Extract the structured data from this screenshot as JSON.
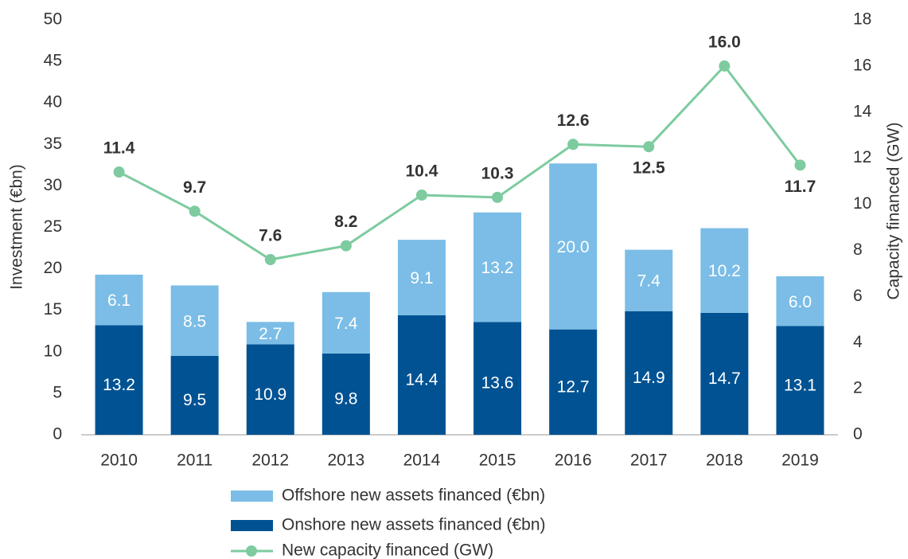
{
  "chart_data": {
    "type": "bar",
    "categories": [
      "2010",
      "2011",
      "2012",
      "2013",
      "2014",
      "2015",
      "2016",
      "2017",
      "2018",
      "2019"
    ],
    "series": [
      {
        "name": "Offshore new assets financed (€bn)",
        "color": "#7bbde6",
        "type": "bar",
        "values": [
          6.1,
          8.5,
          2.7,
          7.4,
          9.1,
          13.2,
          20.0,
          7.4,
          10.2,
          6.0
        ],
        "value_labels": [
          "6.1",
          "8.5",
          "2.7",
          "7.4",
          "9.1",
          "13.2",
          "20.0",
          "7.4",
          "10.2",
          "6.0"
        ]
      },
      {
        "name": "Onshore new assets financed (€bn)",
        "color": "#005293",
        "type": "bar",
        "values": [
          13.2,
          9.5,
          10.9,
          9.8,
          14.4,
          13.6,
          12.7,
          14.9,
          14.7,
          13.1
        ]
      },
      {
        "name": "New capacity financed (GW)",
        "color": "#7dcb9f",
        "type": "line",
        "axis": "y2",
        "values": [
          11.4,
          9.7,
          7.6,
          8.2,
          10.4,
          10.3,
          12.6,
          12.5,
          16.0,
          11.7
        ],
        "value_labels": [
          "11.4",
          "9.7",
          "7.6",
          "8.2",
          "10.4",
          "10.3",
          "12.6",
          "12.5",
          "16.0",
          "11.7"
        ]
      }
    ],
    "ylabel": "Investment (€bn)",
    "y2label": "Capacity financed (GW)",
    "ylim": [
      0,
      50
    ],
    "yticks": [
      0,
      5,
      10,
      15,
      20,
      25,
      30,
      35,
      40,
      45,
      50
    ],
    "y2lim": [
      0,
      18
    ],
    "y2ticks": [
      0,
      2,
      4,
      6,
      8,
      10,
      12,
      14,
      16,
      18
    ],
    "legend": "bottom"
  }
}
